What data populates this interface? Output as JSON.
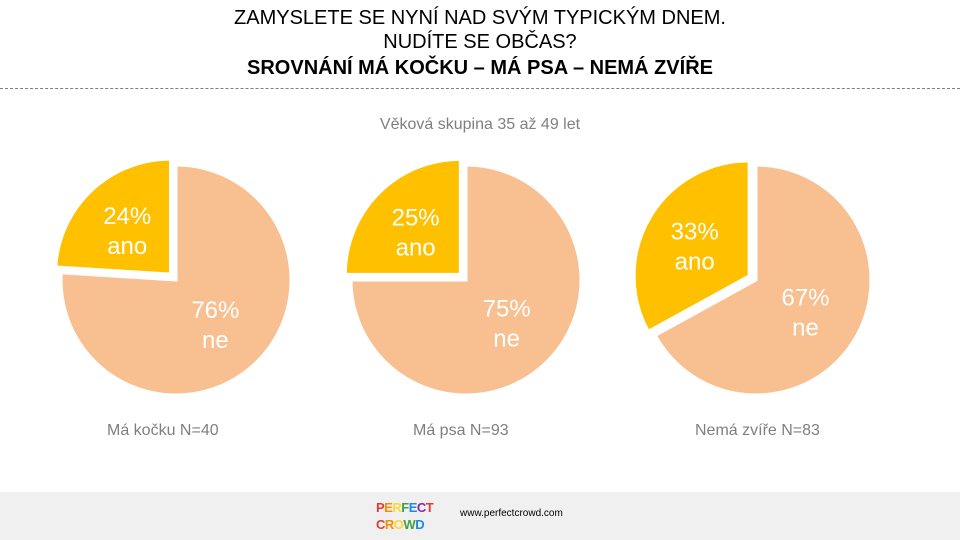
{
  "header": {
    "line1": "ZAMYSLETE SE NYNÍ NAD SVÝM TYPICKÝM DNEM.",
    "line2": "NUDÍTE SE OBČAS?",
    "line3": "SROVNÁNÍ MÁ KOČKU – MÁ PSA – NEMÁ ZVÍŘE"
  },
  "subtitle": "Věková skupina 35 až 49 let",
  "colors": {
    "ano": "#FFC000",
    "ne": "#F8C090",
    "label": "#ffffff",
    "caption": "#7f7f7f"
  },
  "chart_data": [
    {
      "type": "pie",
      "caption": "Má kočku N=40",
      "slices": [
        {
          "label": "ano",
          "value": 24,
          "display": "24%",
          "exploded": true
        },
        {
          "label": "ne",
          "value": 76,
          "display": "76%",
          "exploded": false
        }
      ]
    },
    {
      "type": "pie",
      "caption": "Má psa N=93",
      "slices": [
        {
          "label": "ano",
          "value": 25,
          "display": "25%",
          "exploded": true
        },
        {
          "label": "ne",
          "value": 75,
          "display": "75%",
          "exploded": false
        }
      ]
    },
    {
      "type": "pie",
      "caption": "Nemá zvíře N=83",
      "slices": [
        {
          "label": "ano",
          "value": 33,
          "display": "33%",
          "exploded": true
        },
        {
          "label": "ne",
          "value": 67,
          "display": "67%",
          "exploded": false
        }
      ]
    }
  ],
  "footer": {
    "logo_line1": "PERFECT",
    "logo_line2": "CROWD",
    "url": "www.perfectcrowd.com"
  }
}
